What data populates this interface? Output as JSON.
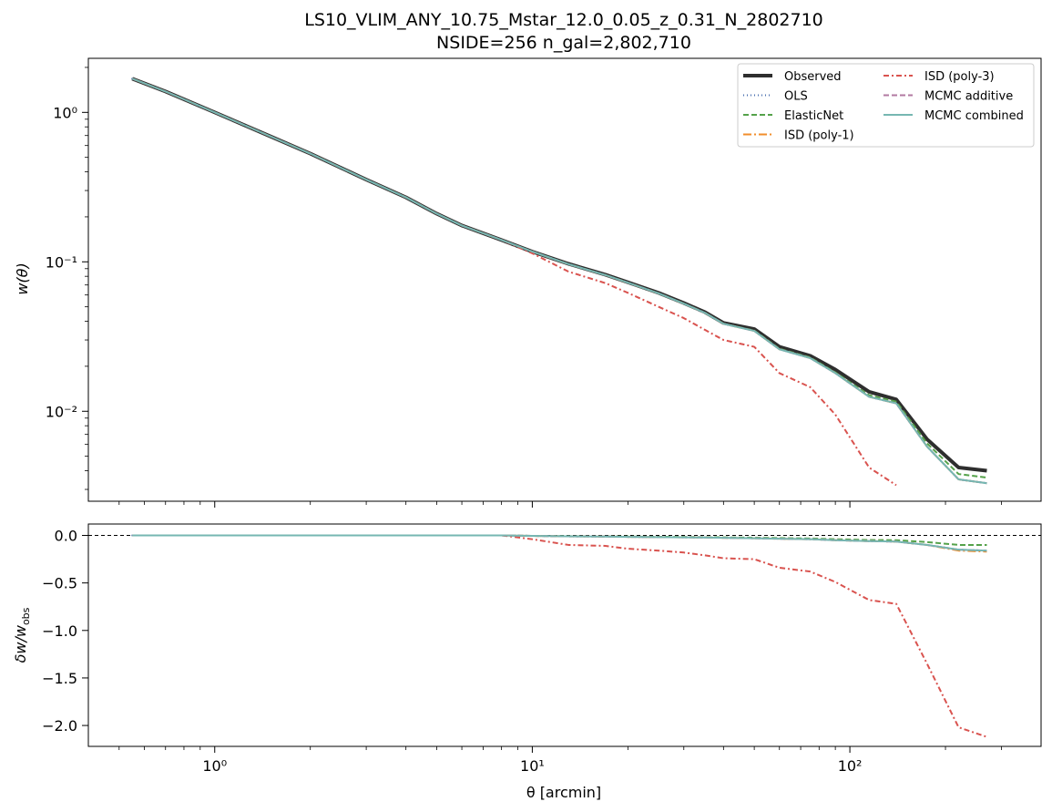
{
  "chart_data": {
    "type": "line",
    "title": "LS10_VLIM_ANY_10.75_Mstar_12.0_0.05_z_0.31_N_2802710",
    "subtitle": "NSIDE=256  n_gal=2,802,710",
    "xlabel": "θ [arcmin]",
    "xscale": "log",
    "xlim": [
      0.4,
      400
    ],
    "legend_position": "upper-right",
    "grid": false,
    "top_panel": {
      "ylabel": "w(θ)",
      "yscale": "log",
      "ylim": [
        0.0025,
        2.3
      ],
      "xticks": [
        {
          "v": 1,
          "label": "10⁰"
        },
        {
          "v": 10,
          "label": "10¹"
        },
        {
          "v": 100,
          "label": "10²"
        }
      ],
      "yticks": [
        {
          "v": 0.01,
          "label": "10⁻²"
        },
        {
          "v": 0.1,
          "label": "10⁻¹"
        },
        {
          "v": 1,
          "label": "10⁰"
        }
      ],
      "x": [
        0.55,
        0.7,
        1.0,
        1.5,
        2.0,
        3.0,
        4.0,
        5.0,
        6.0,
        8.0,
        10.0,
        13.0,
        17.0,
        20.0,
        25.0,
        30.0,
        35.0,
        40.0,
        50.0,
        60.0,
        75.0,
        90.0,
        115.0,
        140.0,
        175.0,
        220.0,
        270.0
      ],
      "series": [
        {
          "name": "Observed",
          "color": "#2e2e2e",
          "dash": "solid",
          "width": 4,
          "values": [
            1.68,
            1.38,
            1.0,
            0.69,
            0.53,
            0.355,
            0.27,
            0.21,
            0.175,
            0.14,
            0.117,
            0.097,
            0.082,
            0.073,
            0.062,
            0.053,
            0.046,
            0.039,
            0.0355,
            0.027,
            0.0235,
            0.019,
            0.0135,
            0.012,
            0.0065,
            0.0042,
            0.004
          ]
        },
        {
          "name": "OLS",
          "color": "#4c72b0",
          "dash": "1,3",
          "width": 2,
          "values": [
            1.68,
            1.38,
            1.0,
            0.69,
            0.53,
            0.355,
            0.27,
            0.21,
            0.175,
            0.14,
            0.117,
            0.0965,
            0.0815,
            0.0725,
            0.0615,
            0.0525,
            0.0455,
            0.0385,
            0.0345,
            0.026,
            0.0227,
            0.018,
            0.0125,
            0.0113,
            0.0058,
            0.0035,
            0.0033
          ]
        },
        {
          "name": "ElasticNet",
          "color": "#55a24a",
          "dash": "6,3",
          "width": 2,
          "values": [
            1.68,
            1.38,
            1.0,
            0.69,
            0.53,
            0.355,
            0.27,
            0.21,
            0.175,
            0.14,
            0.117,
            0.0965,
            0.0815,
            0.0725,
            0.0615,
            0.0525,
            0.0455,
            0.0385,
            0.0347,
            0.0262,
            0.0229,
            0.0182,
            0.0128,
            0.0116,
            0.0061,
            0.0038,
            0.0036
          ]
        },
        {
          "name": "ISD (poly-1)",
          "color": "#f28e2b",
          "dash": "9,3,2,3",
          "width": 2,
          "values": [
            1.68,
            1.38,
            1.0,
            0.69,
            0.53,
            0.355,
            0.27,
            0.21,
            0.175,
            0.14,
            0.117,
            0.0965,
            0.0815,
            0.0725,
            0.0615,
            0.0525,
            0.0455,
            0.0385,
            0.0345,
            0.026,
            0.0227,
            0.018,
            0.0125,
            0.0113,
            0.0058,
            0.0035,
            0.0033
          ]
        },
        {
          "name": "ISD (poly-3)",
          "color": "#d9534f",
          "dash": "6,3,2,3",
          "width": 2,
          "values": [
            1.68,
            1.38,
            1.0,
            0.69,
            0.53,
            0.355,
            0.27,
            0.21,
            0.175,
            0.14,
            0.114,
            0.086,
            0.072,
            0.062,
            0.05,
            0.042,
            0.035,
            0.03,
            0.027,
            0.018,
            0.0145,
            0.0095,
            0.0042,
            0.0032,
            null,
            null,
            null
          ]
        },
        {
          "name": "MCMC additive",
          "color": "#b279a2",
          "dash": "6,3",
          "width": 2,
          "values": [
            1.68,
            1.38,
            1.0,
            0.69,
            0.53,
            0.355,
            0.27,
            0.21,
            0.175,
            0.14,
            0.117,
            0.0965,
            0.0815,
            0.0725,
            0.0615,
            0.0525,
            0.0455,
            0.0385,
            0.0345,
            0.026,
            0.0227,
            0.018,
            0.0125,
            0.0113,
            0.0058,
            0.0035,
            0.0033
          ]
        },
        {
          "name": "MCMC combined",
          "color": "#76b7b2",
          "dash": "solid",
          "width": 2,
          "values": [
            1.68,
            1.38,
            1.0,
            0.69,
            0.53,
            0.355,
            0.27,
            0.21,
            0.175,
            0.14,
            0.117,
            0.0965,
            0.0815,
            0.0725,
            0.0615,
            0.0525,
            0.0455,
            0.0385,
            0.0345,
            0.026,
            0.0227,
            0.018,
            0.0125,
            0.0113,
            0.0058,
            0.0035,
            0.0033
          ]
        }
      ]
    },
    "bottom_panel": {
      "ylabel": "δw/w_obs",
      "yscale": "linear",
      "ylim": [
        -2.22,
        0.12
      ],
      "yticks": [
        {
          "v": 0.0,
          "label": "0.0"
        },
        {
          "v": -0.5,
          "label": "−0.5"
        },
        {
          "v": -1.0,
          "label": "−1.0"
        },
        {
          "v": -1.5,
          "label": "−1.5"
        },
        {
          "v": -2.0,
          "label": "−2.0"
        }
      ],
      "xticks": [
        {
          "v": 1,
          "label": "10⁰"
        },
        {
          "v": 10,
          "label": "10¹"
        },
        {
          "v": 100,
          "label": "10²"
        }
      ],
      "reference_line": 0.0,
      "x": [
        0.55,
        0.7,
        1.0,
        1.5,
        2.0,
        3.0,
        4.0,
        5.0,
        6.0,
        8.0,
        10.0,
        13.0,
        17.0,
        20.0,
        25.0,
        30.0,
        35.0,
        40.0,
        50.0,
        60.0,
        75.0,
        90.0,
        115.0,
        140.0,
        175.0,
        220.0,
        270.0
      ],
      "series": [
        {
          "name": "OLS",
          "color": "#4c72b0",
          "dash": "1,3",
          "width": 2,
          "values": [
            0,
            0,
            0,
            0,
            0,
            0,
            0,
            0,
            0,
            0,
            -0.005,
            -0.01,
            -0.012,
            -0.015,
            -0.018,
            -0.02,
            -0.022,
            -0.025,
            -0.03,
            -0.035,
            -0.04,
            -0.05,
            -0.06,
            -0.065,
            -0.1,
            -0.15,
            -0.16
          ]
        },
        {
          "name": "ElasticNet",
          "color": "#55a24a",
          "dash": "6,3",
          "width": 2,
          "values": [
            0,
            0,
            0,
            0,
            0,
            0,
            0,
            0,
            0,
            0,
            -0.005,
            -0.008,
            -0.01,
            -0.012,
            -0.014,
            -0.016,
            -0.018,
            -0.02,
            -0.024,
            -0.028,
            -0.032,
            -0.04,
            -0.048,
            -0.05,
            -0.07,
            -0.1,
            -0.1
          ]
        },
        {
          "name": "ISD (poly-1)",
          "color": "#f28e2b",
          "dash": "9,3,2,3",
          "width": 2,
          "values": [
            0,
            0,
            0,
            0,
            0,
            0,
            0,
            0,
            0,
            0,
            -0.005,
            -0.01,
            -0.012,
            -0.015,
            -0.018,
            -0.02,
            -0.022,
            -0.025,
            -0.03,
            -0.035,
            -0.04,
            -0.05,
            -0.06,
            -0.065,
            -0.1,
            -0.16,
            -0.17
          ]
        },
        {
          "name": "ISD (poly-3)",
          "color": "#d9534f",
          "dash": "6,3,2,3",
          "width": 2,
          "values": [
            0,
            0,
            0,
            0,
            0,
            0,
            0,
            0,
            0,
            0,
            -0.04,
            -0.1,
            -0.11,
            -0.14,
            -0.16,
            -0.18,
            -0.21,
            -0.24,
            -0.25,
            -0.34,
            -0.38,
            -0.49,
            -0.68,
            -0.72,
            -1.35,
            -2.02,
            -2.12
          ]
        },
        {
          "name": "MCMC additive",
          "color": "#b279a2",
          "dash": "6,3",
          "width": 2,
          "values": [
            0,
            0,
            0,
            0,
            0,
            0,
            0,
            0,
            0,
            0,
            -0.005,
            -0.01,
            -0.012,
            -0.015,
            -0.018,
            -0.02,
            -0.022,
            -0.025,
            -0.03,
            -0.035,
            -0.04,
            -0.05,
            -0.06,
            -0.065,
            -0.1,
            -0.15,
            -0.16
          ]
        },
        {
          "name": "MCMC combined",
          "color": "#76b7b2",
          "dash": "solid",
          "width": 2,
          "values": [
            0,
            0,
            0,
            0,
            0,
            0,
            0,
            0,
            0,
            0,
            -0.005,
            -0.01,
            -0.012,
            -0.015,
            -0.018,
            -0.02,
            -0.022,
            -0.025,
            -0.03,
            -0.035,
            -0.04,
            -0.05,
            -0.06,
            -0.065,
            -0.1,
            -0.15,
            -0.16
          ]
        }
      ]
    }
  }
}
